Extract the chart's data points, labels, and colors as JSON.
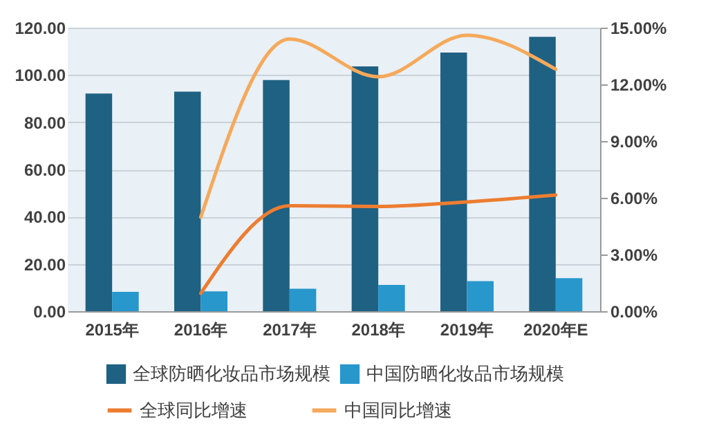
{
  "chart_data": {
    "type": "bar",
    "categories": [
      "2015年",
      "2016年",
      "2017年",
      "2018年",
      "2019年",
      "2020年E"
    ],
    "series": [
      {
        "name": "全球防晒化妆品市场规模",
        "color": "#1f6182",
        "values": [
          92.1,
          92.9,
          97.8,
          103.6,
          109.5,
          116.1
        ]
      },
      {
        "name": "中国防晒化妆品市场规模",
        "color": "#2797cc",
        "values": [
          8.2,
          8.4,
          9.5,
          11.1,
          12.7,
          14.0
        ]
      },
      {
        "name": "全球同比增速",
        "type": "line",
        "axis": "y2",
        "color": "#ed7d31",
        "values": [
          null,
          0.95,
          5.58,
          5.54,
          5.78,
          6.15
        ]
      },
      {
        "name": "中国同比增速",
        "type": "line",
        "axis": "y2",
        "color": "#f5a95a",
        "values": [
          null,
          4.98,
          14.4,
          12.4,
          14.6,
          12.8
        ]
      }
    ],
    "ylim": [
      0,
      120
    ],
    "yticks": [
      {
        "value": 0,
        "label": "0.00"
      },
      {
        "value": 20,
        "label": "20.00"
      },
      {
        "value": 40,
        "label": "40.00"
      },
      {
        "value": 60,
        "label": "60.00"
      },
      {
        "value": 80,
        "label": "80.00"
      },
      {
        "value": 100,
        "label": "100.00"
      },
      {
        "value": 120,
        "label": "120.00"
      }
    ],
    "y2lim": [
      0,
      15
    ],
    "y2ticks": [
      {
        "value": 0,
        "label": "0.00%"
      },
      {
        "value": 3,
        "label": "3.00%"
      },
      {
        "value": 6,
        "label": "6.00%"
      },
      {
        "value": 9,
        "label": "9.00%"
      },
      {
        "value": 12,
        "label": "12.00%"
      },
      {
        "value": 15,
        "label": "15.00%"
      }
    ],
    "grid": "y",
    "legend": "bottom"
  }
}
